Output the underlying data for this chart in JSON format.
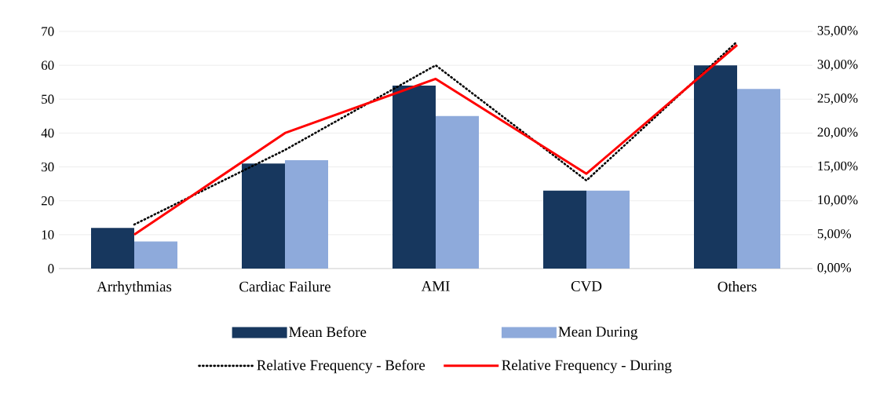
{
  "chart_data": {
    "type": "bar",
    "categories": [
      "Arrhythmias",
      "Cardiac Failure",
      "AMI",
      "CVD",
      "Others"
    ],
    "series": [
      {
        "name": "Mean Before",
        "color": "#17375e",
        "values": [
          12,
          31,
          54,
          23,
          60
        ]
      },
      {
        "name": "Mean During",
        "color": "#8eaadb",
        "values": [
          8,
          32,
          45,
          23,
          53
        ]
      },
      {
        "name": "Relative Frequency - Before",
        "type": "line",
        "axis": "y2",
        "color": "#000000",
        "line_style": "dotted",
        "values": [
          6.5,
          17.5,
          30,
          13,
          33.5
        ]
      },
      {
        "name": "Relative Frequency - During",
        "type": "line",
        "axis": "y2",
        "color": "#ff0000",
        "line_style": "solid",
        "values": [
          5,
          20,
          28,
          14,
          33
        ]
      }
    ],
    "ylim": [
      0,
      70
    ],
    "yticks": [
      0,
      10,
      20,
      30,
      40,
      50,
      60,
      70
    ],
    "y2lim": [
      0,
      35
    ],
    "y2ticks": [
      {
        "value": 0,
        "label": "0,00%"
      },
      {
        "value": 5,
        "label": "5,00%"
      },
      {
        "value": 10,
        "label": "10,00%"
      },
      {
        "value": 15,
        "label": "15,00%"
      },
      {
        "value": 20,
        "label": "20,00%"
      },
      {
        "value": 25,
        "label": "25,00%"
      },
      {
        "value": 30,
        "label": "30,00%"
      },
      {
        "value": 35,
        "label": "35,00%"
      }
    ],
    "grid": "y",
    "legend": "bottom",
    "marker": "none"
  }
}
